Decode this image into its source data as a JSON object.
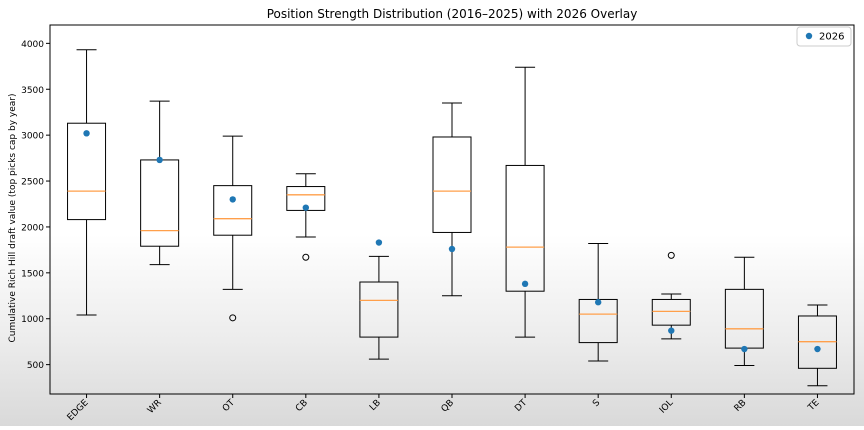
{
  "chart_data": {
    "type": "boxplot",
    "title": "Position Strength Distribution (2016–2025) with 2026 Overlay",
    "xlabel": "",
    "ylabel": "Cumulative Rich Hill draft value (top picks cap by year)",
    "ylim": [
      180,
      4200
    ],
    "yticks": [
      500,
      1000,
      1500,
      2000,
      2500,
      3000,
      3500,
      4000
    ],
    "categories": [
      "EDGE",
      "WR",
      "OT",
      "CB",
      "LB",
      "QB",
      "DT",
      "S",
      "IOL",
      "RB",
      "TE"
    ],
    "boxes": [
      {
        "category": "EDGE",
        "whisker_low": 1040,
        "q1": 2080,
        "median": 2390,
        "q3": 3130,
        "whisker_high": 3930,
        "outliers": []
      },
      {
        "category": "WR",
        "whisker_low": 1590,
        "q1": 1790,
        "median": 1960,
        "q3": 2730,
        "whisker_high": 3370,
        "outliers": []
      },
      {
        "category": "OT",
        "whisker_low": 1320,
        "q1": 1910,
        "median": 2090,
        "q3": 2450,
        "whisker_high": 2990,
        "outliers": [
          1010
        ]
      },
      {
        "category": "CB",
        "whisker_low": 1890,
        "q1": 2180,
        "median": 2350,
        "q3": 2440,
        "whisker_high": 2580,
        "outliers": [
          1670
        ]
      },
      {
        "category": "LB",
        "whisker_low": 560,
        "q1": 800,
        "median": 1200,
        "q3": 1400,
        "whisker_high": 1680,
        "outliers": []
      },
      {
        "category": "QB",
        "whisker_low": 1250,
        "q1": 1940,
        "median": 2390,
        "q3": 2980,
        "whisker_high": 3350,
        "outliers": []
      },
      {
        "category": "DT",
        "whisker_low": 800,
        "q1": 1300,
        "median": 1780,
        "q3": 2670,
        "whisker_high": 3740,
        "outliers": []
      },
      {
        "category": "S",
        "whisker_low": 540,
        "q1": 740,
        "median": 1050,
        "q3": 1210,
        "whisker_high": 1820,
        "outliers": []
      },
      {
        "category": "IOL",
        "whisker_low": 780,
        "q1": 930,
        "median": 1080,
        "q3": 1210,
        "whisker_high": 1270,
        "outliers": [
          1690
        ]
      },
      {
        "category": "RB",
        "whisker_low": 490,
        "q1": 680,
        "median": 890,
        "q3": 1320,
        "whisker_high": 1670,
        "outliers": []
      },
      {
        "category": "TE",
        "whisker_low": 270,
        "q1": 460,
        "median": 750,
        "q3": 1030,
        "whisker_high": 1150,
        "outliers": []
      }
    ],
    "overlay": {
      "name": "2026",
      "values": [
        3020,
        2730,
        2300,
        2210,
        1830,
        1760,
        1380,
        1180,
        870,
        670,
        670
      ]
    },
    "legend": {
      "position": "top-right",
      "entries": [
        "2026"
      ]
    },
    "colors": {
      "box_stroke": "#000000",
      "median": "#ff9f4a",
      "overlay": "#1f77b4",
      "outlier": "#000000"
    }
  }
}
